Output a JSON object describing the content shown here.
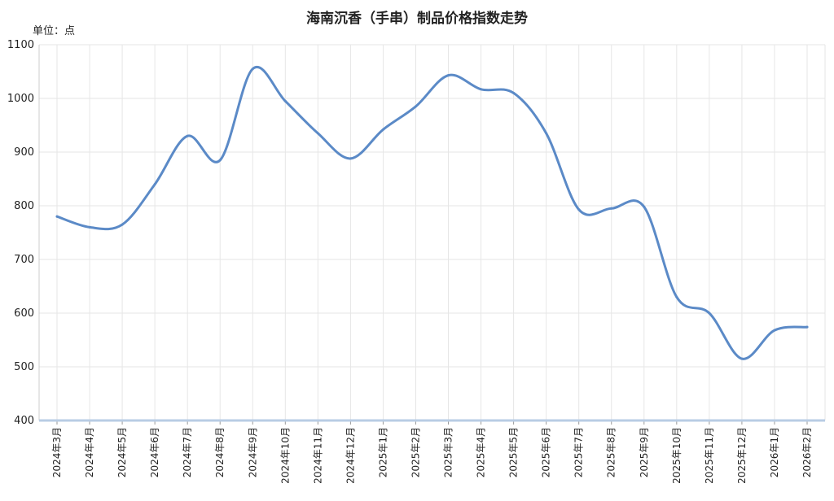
{
  "title": "海南沉香（手串）制品价格指数走势",
  "unit_label": "单位：点",
  "colors": {
    "line": "#5b8ac7",
    "grid": "#e6e6e6",
    "axis": "#b8cce4"
  },
  "chart_data": {
    "type": "line",
    "title": "海南沉香（手串）制品价格指数走势",
    "ylabel": "单位：点",
    "xlabel": "",
    "ylim": [
      400,
      1100
    ],
    "yticks": [
      400,
      500,
      600,
      700,
      800,
      900,
      1000,
      1100
    ],
    "grid": true,
    "smooth": true,
    "categories": [
      "2024年3月",
      "2024年4月",
      "2024年5月",
      "2024年6月",
      "2024年7月",
      "2024年8月",
      "2024年9月",
      "2024年10月",
      "2024年11月",
      "2024年12月",
      "2025年1月",
      "2025年2月",
      "2025年3月",
      "2025年4月",
      "2025年5月",
      "2025年6月",
      "2025年7月",
      "2025年8月",
      "2025年9月",
      "2025年10月",
      "2025年11月",
      "2025年12月",
      "2026年1月",
      "2026年2月"
    ],
    "series": [
      {
        "values": [
          780,
          760,
          765,
          840,
          930,
          885,
          1055,
          995,
          935,
          888,
          942,
          985,
          1043,
          1017,
          1010,
          935,
          793,
          795,
          798,
          630,
          600,
          515,
          568,
          574
        ]
      }
    ]
  }
}
